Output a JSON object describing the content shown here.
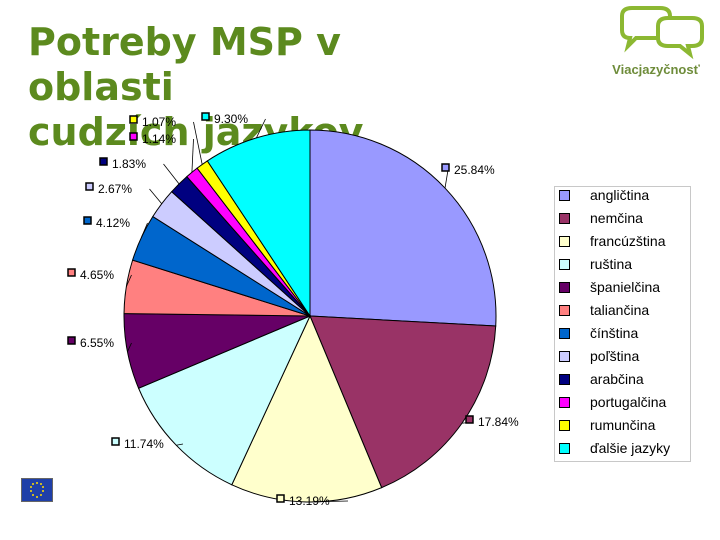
{
  "header": {
    "title_line1": "Potreby MSP v oblasti",
    "title_line2": "cudzích jazykov",
    "logo_text": "Viacjazyčnosť",
    "title_color": "#5c8a1e",
    "logo_color": "#8cb832"
  },
  "chart_data": {
    "type": "pie",
    "title": "Potreby MSP v oblasti cudzích jazykov",
    "slices": [
      {
        "label": "angličtina",
        "value": 25.84,
        "value_label": "25.84%",
        "color": "#9999ff"
      },
      {
        "label": "nemčina",
        "value": 17.84,
        "value_label": "17.84%",
        "color": "#993366"
      },
      {
        "label": "francúzština",
        "value": 13.19,
        "value_label": "13.19%",
        "color": "#ffffcc"
      },
      {
        "label": "ruština",
        "value": 11.74,
        "value_label": "11.74%",
        "color": "#ccffff"
      },
      {
        "label": "španielčina",
        "value": 6.55,
        "value_label": "6.55%",
        "color": "#660066"
      },
      {
        "label": "taliančina",
        "value": 4.65,
        "value_label": "4.65%",
        "color": "#ff8080"
      },
      {
        "label": "čínština",
        "value": 4.12,
        "value_label": "4.12%",
        "color": "#0066cc"
      },
      {
        "label": "poľština",
        "value": 2.67,
        "value_label": "2.67%",
        "color": "#ccccff"
      },
      {
        "label": "arabčina",
        "value": 1.83,
        "value_label": "1.83%",
        "color": "#000080"
      },
      {
        "label": "portugalčina",
        "value": 1.14,
        "value_label": "1.14%",
        "color": "#ff00ff"
      },
      {
        "label": "rumunčina",
        "value": 1.07,
        "value_label": "1.07%",
        "color": "#ffff00"
      },
      {
        "label": "ďalšie jazyky",
        "value": 9.3,
        "value_label": "9.30%",
        "color": "#00ffff"
      }
    ],
    "legend_position": "right"
  }
}
